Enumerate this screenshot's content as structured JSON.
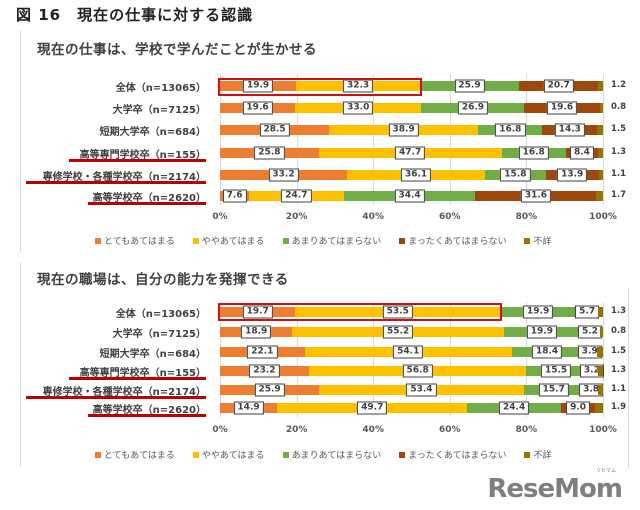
{
  "figure": {
    "title": "図 16　現在の仕事に対する認識"
  },
  "colors": {
    "very_true": "#ED7D31",
    "somewhat_true": "#FFC000",
    "not_really": "#70AD47",
    "not_at_all": "#9E480E",
    "unknown": "#997300",
    "highlight": "#D01010"
  },
  "legend": [
    "とてもあてはまる",
    "ややあてはまる",
    "あまりあてはまらない",
    "まったくあてはまらない",
    "不詳"
  ],
  "ticks": [
    "0%",
    "20%",
    "40%",
    "60%",
    "80%",
    "100%"
  ],
  "categories": [
    "全体（n=13065）",
    "大学卒（n=7125）",
    "短期大学卒（n=684）",
    "高等専門学校卒（n=155）",
    "専修学校・各種学校卒（n=2174）",
    "高等学校卒（n=2620）"
  ],
  "charts": [
    {
      "title": "現在の仕事は、学校で学んだことが生かせる",
      "rows": [
        {
          "label": "全体（n=13065）",
          "values": [
            19.9,
            32.3,
            25.9,
            20.7,
            1.2
          ],
          "labels": [
            "19.9",
            "32.3",
            "25.9",
            "20.7",
            "1.2"
          ]
        },
        {
          "label": "大学卒（n=7125）",
          "values": [
            19.6,
            33.0,
            26.9,
            19.6,
            0.8
          ],
          "labels": [
            "19.6",
            "33.0",
            "26.9",
            "19.6",
            "0.8"
          ]
        },
        {
          "label": "短期大学卒（n=684）",
          "values": [
            28.5,
            38.9,
            16.8,
            14.3,
            1.5
          ],
          "labels": [
            "28.5",
            "38.9",
            "16.8",
            "14.3",
            "1.5"
          ]
        },
        {
          "label": "高等専門学校卒（n=155）",
          "values": [
            25.8,
            47.7,
            16.8,
            8.4,
            1.3
          ],
          "labels": [
            "25.8",
            "47.7",
            "16.8",
            "8.4",
            "1.3"
          ]
        },
        {
          "label": "専修学校・各種学校卒（n=2174）",
          "values": [
            33.2,
            36.1,
            15.8,
            13.9,
            1.1
          ],
          "labels": [
            "33.2",
            "36.1",
            "15.8",
            "13.9",
            "1.1"
          ]
        },
        {
          "label": "高等学校卒（n=2620）",
          "values": [
            7.6,
            24.7,
            34.4,
            31.6,
            1.7
          ],
          "labels": [
            "7.6",
            "24.7",
            "34.4",
            "31.6",
            "1.7"
          ]
        }
      ]
    },
    {
      "title": "現在の職場は、自分の能力を発揮できる",
      "rows": [
        {
          "label": "全体（n=13065）",
          "values": [
            19.7,
            53.5,
            19.9,
            5.7,
            1.3
          ],
          "labels": [
            "19.7",
            "53.5",
            "19.9",
            "5.7",
            "1.3"
          ]
        },
        {
          "label": "大学卒（n=7125）",
          "values": [
            18.9,
            55.2,
            19.9,
            5.2,
            0.8
          ],
          "labels": [
            "18.9",
            "55.2",
            "19.9",
            "5.2",
            "0.8"
          ]
        },
        {
          "label": "短期大学卒（n=684）",
          "values": [
            22.1,
            54.1,
            18.4,
            3.9,
            1.5
          ],
          "labels": [
            "22.1",
            "54.1",
            "18.4",
            "3.9",
            "1.5"
          ]
        },
        {
          "label": "高等専門学校卒（n=155）",
          "values": [
            23.2,
            56.8,
            15.5,
            3.2,
            1.3
          ],
          "labels": [
            "23.2",
            "56.8",
            "15.5",
            "3.2",
            "1.3"
          ]
        },
        {
          "label": "専修学校・各種学校卒（n=2174）",
          "values": [
            25.9,
            53.4,
            15.7,
            3.8,
            1.1
          ],
          "labels": [
            "25.9",
            "53.4",
            "15.7",
            "3.8",
            "1.1"
          ]
        },
        {
          "label": "高等学校卒（n=2620）",
          "values": [
            14.9,
            49.7,
            24.4,
            9.0,
            1.9
          ],
          "labels": [
            "14.9",
            "49.7",
            "24.4",
            "9.0",
            "1.9"
          ]
        }
      ]
    }
  ],
  "watermark": {
    "text": "ReseMom",
    "sub": "リセマム"
  },
  "chart_data": [
    {
      "type": "bar",
      "orientation": "horizontal",
      "stacked": true,
      "title": "現在の仕事は、学校で学んだことが生かせる",
      "categories": [
        "全体（n=13065）",
        "大学卒（n=7125）",
        "短期大学卒（n=684）",
        "高等専門学校卒（n=155）",
        "専修学校・各種学校卒（n=2174）",
        "高等学校卒（n=2620）"
      ],
      "series": [
        {
          "name": "とてもあてはまる",
          "values": [
            19.9,
            19.6,
            28.5,
            25.8,
            33.2,
            7.6
          ]
        },
        {
          "name": "ややあてはまる",
          "values": [
            32.3,
            33.0,
            38.9,
            47.7,
            36.1,
            24.7
          ]
        },
        {
          "name": "あまりあてはまらない",
          "values": [
            25.9,
            26.9,
            16.8,
            16.8,
            15.8,
            34.4
          ]
        },
        {
          "name": "まったくあてはまらない",
          "values": [
            20.7,
            19.6,
            14.3,
            8.4,
            13.9,
            31.6
          ]
        },
        {
          "name": "不詳",
          "values": [
            1.2,
            0.8,
            1.5,
            1.3,
            1.1,
            1.7
          ]
        }
      ],
      "xlabel": "",
      "ylabel": "",
      "xlim": [
        0,
        100
      ],
      "xticks": [
        "0%",
        "20%",
        "40%",
        "60%",
        "80%",
        "100%"
      ],
      "grid": true,
      "legend_position": "bottom",
      "annotations": [
        "全体 row highlighted with red box over first two segments",
        "高等専門学校卒, 専修学校・各種学校卒, 高等学校卒 labels underlined in red"
      ]
    },
    {
      "type": "bar",
      "orientation": "horizontal",
      "stacked": true,
      "title": "現在の職場は、自分の能力を発揮できる",
      "categories": [
        "全体（n=13065）",
        "大学卒（n=7125）",
        "短期大学卒（n=684）",
        "高等専門学校卒（n=155）",
        "専修学校・各種学校卒（n=2174）",
        "高等学校卒（n=2620）"
      ],
      "series": [
        {
          "name": "とてもあてはまる",
          "values": [
            19.7,
            18.9,
            22.1,
            23.2,
            25.9,
            14.9
          ]
        },
        {
          "name": "ややあてはまる",
          "values": [
            53.5,
            55.2,
            54.1,
            56.8,
            53.4,
            49.7
          ]
        },
        {
          "name": "あまりあてはまらない",
          "values": [
            19.9,
            19.9,
            18.4,
            15.5,
            15.7,
            24.4
          ]
        },
        {
          "name": "まったくあてはまらない",
          "values": [
            5.7,
            5.2,
            3.9,
            3.2,
            3.8,
            9.0
          ]
        },
        {
          "name": "不詳",
          "values": [
            1.3,
            0.8,
            1.5,
            1.3,
            1.1,
            1.9
          ]
        }
      ],
      "xlabel": "",
      "ylabel": "",
      "xlim": [
        0,
        100
      ],
      "xticks": [
        "0%",
        "20%",
        "40%",
        "60%",
        "80%",
        "100%"
      ],
      "grid": true,
      "legend_position": "bottom",
      "annotations": [
        "全体 row highlighted with red box over first two segments",
        "高等専門学校卒, 専修学校・各種学校卒, 高等学校卒 labels underlined in red"
      ]
    }
  ]
}
